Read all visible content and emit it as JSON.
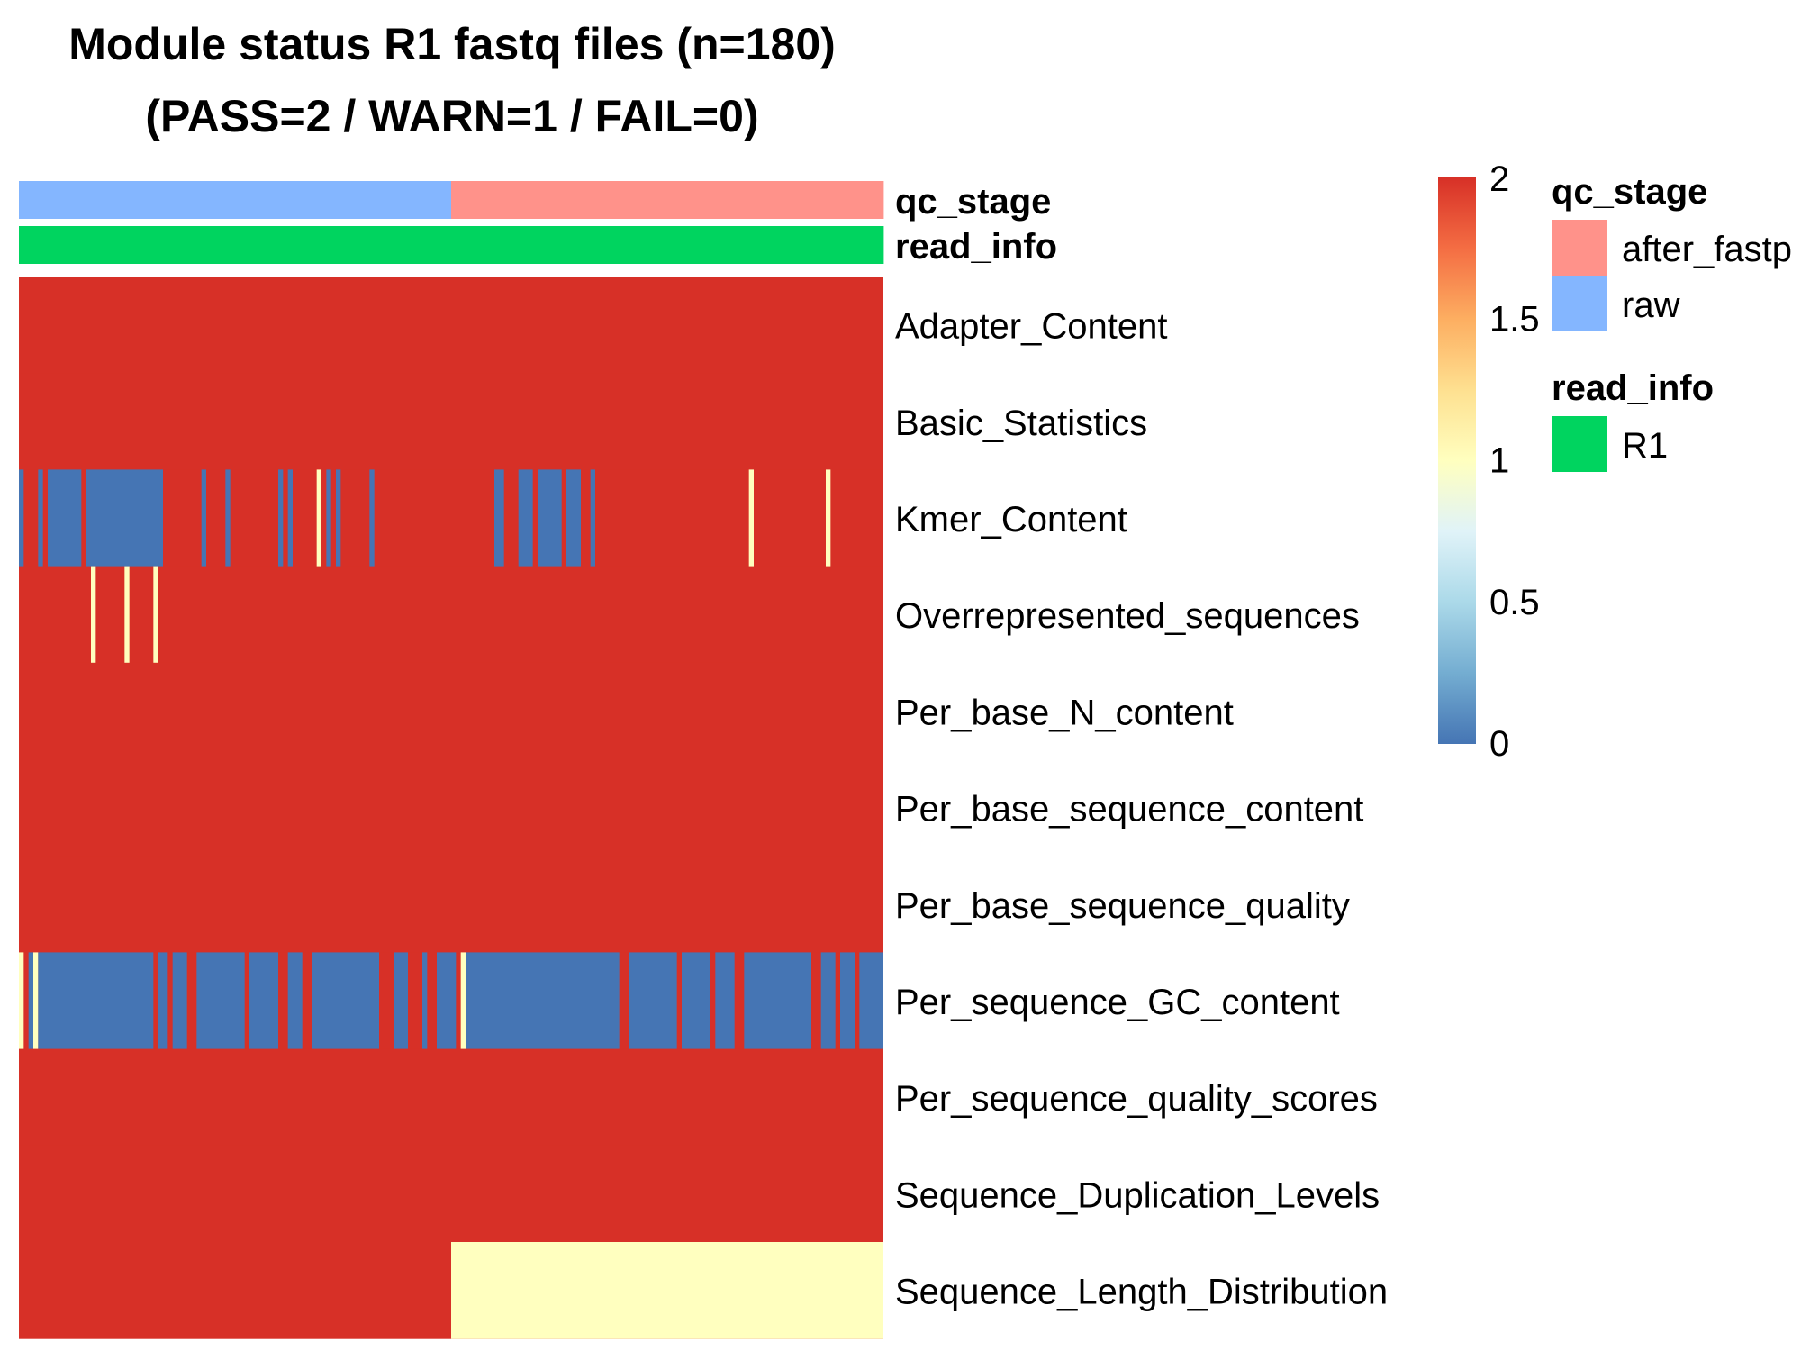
{
  "chart_data": {
    "type": "heatmap",
    "title": "Module status R1 fastq files (n=180)",
    "subtitle": "(PASS=2 / WARN=1 / FAIL=0)",
    "n_samples": 180,
    "annotations": [
      {
        "name": "qc_stage",
        "segments": [
          {
            "label": "raw",
            "start": 0,
            "end": 90,
            "color": "#84B6FF"
          },
          {
            "label": "after_fastp",
            "start": 90,
            "end": 180,
            "color": "#FF928A"
          }
        ]
      },
      {
        "name": "read_info",
        "segments": [
          {
            "label": "R1",
            "start": 0,
            "end": 180,
            "color": "#00D45F"
          }
        ]
      }
    ],
    "rows": [
      {
        "name": "Adapter_Content",
        "default": 2,
        "exceptions": []
      },
      {
        "name": "Basic_Statistics",
        "default": 2,
        "exceptions": []
      },
      {
        "name": "Kmer_Content",
        "default": 2,
        "exceptions": [
          {
            "start": 0,
            "end": 1,
            "value": 0
          },
          {
            "start": 4,
            "end": 5,
            "value": 0
          },
          {
            "start": 6,
            "end": 13,
            "value": 0
          },
          {
            "start": 14,
            "end": 30,
            "value": 0
          },
          {
            "start": 38,
            "end": 39,
            "value": 0
          },
          {
            "start": 43,
            "end": 44,
            "value": 0
          },
          {
            "start": 54,
            "end": 55,
            "value": 0
          },
          {
            "start": 56,
            "end": 57,
            "value": 0
          },
          {
            "start": 62,
            "end": 63,
            "value": 1
          },
          {
            "start": 64,
            "end": 65,
            "value": 0
          },
          {
            "start": 66,
            "end": 67,
            "value": 0
          },
          {
            "start": 73,
            "end": 74,
            "value": 0
          },
          {
            "start": 99,
            "end": 101,
            "value": 0
          },
          {
            "start": 104,
            "end": 107,
            "value": 0
          },
          {
            "start": 108,
            "end": 113,
            "value": 0
          },
          {
            "start": 114,
            "end": 117,
            "value": 0
          },
          {
            "start": 119,
            "end": 120,
            "value": 0
          },
          {
            "start": 152,
            "end": 153,
            "value": 1
          },
          {
            "start": 168,
            "end": 169,
            "value": 1
          }
        ]
      },
      {
        "name": "Overrepresented_sequences",
        "default": 2,
        "exceptions": [
          {
            "start": 15,
            "end": 16,
            "value": 1
          },
          {
            "start": 22,
            "end": 23,
            "value": 1
          },
          {
            "start": 28,
            "end": 29,
            "value": 1
          }
        ]
      },
      {
        "name": "Per_base_N_content",
        "default": 2,
        "exceptions": []
      },
      {
        "name": "Per_base_sequence_content",
        "default": 2,
        "exceptions": []
      },
      {
        "name": "Per_base_sequence_quality",
        "default": 2,
        "exceptions": []
      },
      {
        "name": "Per_sequence_GC_content",
        "default": 2,
        "exceptions": [
          {
            "start": 0,
            "end": 1,
            "value": 1
          },
          {
            "start": 2,
            "end": 3,
            "value": 0
          },
          {
            "start": 3,
            "end": 4,
            "value": 1
          },
          {
            "start": 4,
            "end": 28,
            "value": 0
          },
          {
            "start": 29,
            "end": 31,
            "value": 0
          },
          {
            "start": 32,
            "end": 35,
            "value": 0
          },
          {
            "start": 37,
            "end": 47,
            "value": 0
          },
          {
            "start": 48,
            "end": 54,
            "value": 0
          },
          {
            "start": 56,
            "end": 59,
            "value": 0
          },
          {
            "start": 61,
            "end": 75,
            "value": 0
          },
          {
            "start": 78,
            "end": 81,
            "value": 0
          },
          {
            "start": 84,
            "end": 85,
            "value": 0
          },
          {
            "start": 87,
            "end": 91,
            "value": 0
          },
          {
            "start": 92,
            "end": 93,
            "value": 1
          },
          {
            "start": 93,
            "end": 125,
            "value": 0
          },
          {
            "start": 127,
            "end": 137,
            "value": 0
          },
          {
            "start": 138,
            "end": 144,
            "value": 0
          },
          {
            "start": 145,
            "end": 149,
            "value": 0
          },
          {
            "start": 151,
            "end": 165,
            "value": 0
          },
          {
            "start": 167,
            "end": 170,
            "value": 0
          },
          {
            "start": 171,
            "end": 174,
            "value": 0
          },
          {
            "start": 175,
            "end": 180,
            "value": 0
          }
        ]
      },
      {
        "name": "Per_sequence_quality_scores",
        "default": 2,
        "exceptions": []
      },
      {
        "name": "Sequence_Duplication_Levels",
        "default": 2,
        "exceptions": []
      },
      {
        "name": "Sequence_Length_Distribution",
        "default": 2,
        "exceptions": [
          {
            "start": 90,
            "end": 180,
            "value": 1
          }
        ]
      }
    ],
    "colorbar": {
      "min": 0,
      "max": 2,
      "ticks": [
        {
          "value": 2,
          "label": "2"
        },
        {
          "value": 1.5,
          "label": "1.5"
        },
        {
          "value": 1,
          "label": "1"
        },
        {
          "value": 0.5,
          "label": "0.5"
        },
        {
          "value": 0,
          "label": "0"
        }
      ],
      "stops": [
        {
          "value": 0,
          "color": "#4575B4"
        },
        {
          "value": 0.25,
          "color": "#74ADD1"
        },
        {
          "value": 0.5,
          "color": "#ABD9E9"
        },
        {
          "value": 0.75,
          "color": "#E0F3F8"
        },
        {
          "value": 1,
          "color": "#FFFFBF"
        },
        {
          "value": 1.25,
          "color": "#FEE090"
        },
        {
          "value": 1.5,
          "color": "#FDAE61"
        },
        {
          "value": 1.75,
          "color": "#F46D43"
        },
        {
          "value": 2,
          "color": "#D73027"
        }
      ]
    },
    "legends": [
      {
        "title": "qc_stage",
        "items": [
          {
            "label": "after_fastp",
            "color": "#FF928A"
          },
          {
            "label": "raw",
            "color": "#84B6FF"
          }
        ]
      },
      {
        "title": "read_info",
        "items": [
          {
            "label": "R1",
            "color": "#00D45F"
          }
        ]
      }
    ],
    "value_colors": {
      "0": "#4575B4",
      "1": "#FFFFBF",
      "2": "#D73027"
    }
  }
}
